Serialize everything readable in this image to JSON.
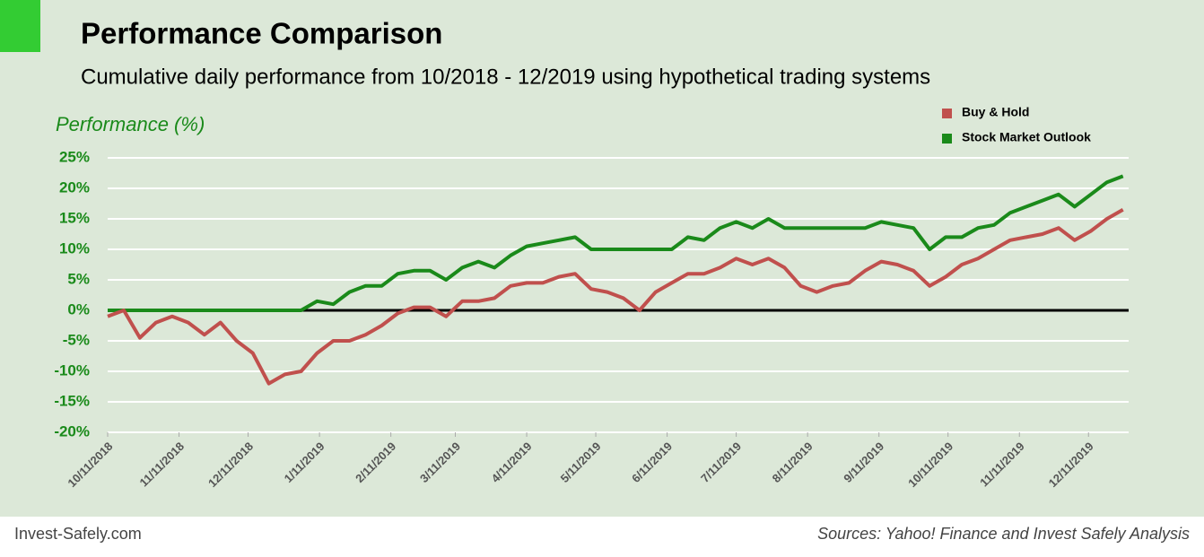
{
  "chart_data": {
    "type": "line",
    "title": "Performance Comparison",
    "subtitle": "Cumulative daily performance from 10/2018 - 12/2019 using hypothetical trading systems",
    "y_label": "Performance (%)",
    "x": [
      "10/11/2018",
      "10/18/2018",
      "10/25/2018",
      "11/1/2018",
      "11/8/2018",
      "11/15/2018",
      "11/22/2018",
      "11/29/2018",
      "12/6/2018",
      "12/13/2018",
      "12/20/2018",
      "12/27/2018",
      "1/3/2019",
      "1/10/2019",
      "1/17/2019",
      "1/24/2019",
      "1/31/2019",
      "2/7/2019",
      "2/14/2019",
      "2/21/2019",
      "2/28/2019",
      "3/7/2019",
      "3/14/2019",
      "3/21/2019",
      "3/28/2019",
      "4/4/2019",
      "4/11/2019",
      "4/18/2019",
      "4/25/2019",
      "5/2/2019",
      "5/9/2019",
      "5/16/2019",
      "5/23/2019",
      "5/30/2019",
      "6/6/2019",
      "6/13/2019",
      "6/20/2019",
      "6/27/2019",
      "7/4/2019",
      "7/11/2019",
      "7/18/2019",
      "7/25/2019",
      "8/1/2019",
      "8/8/2019",
      "8/15/2019",
      "8/22/2019",
      "8/29/2019",
      "9/5/2019",
      "9/12/2019",
      "9/19/2019",
      "9/26/2019",
      "10/3/2019",
      "10/10/2019",
      "10/17/2019",
      "10/24/2019",
      "10/31/2019",
      "11/7/2019",
      "11/14/2019",
      "11/21/2019",
      "11/28/2019",
      "12/5/2019",
      "12/12/2019",
      "12/19/2019",
      "12/26/2019"
    ],
    "series": [
      {
        "name": "Buy & Hold",
        "color": "#c0504d",
        "values": [
          -1,
          0,
          -4.5,
          -2,
          -1,
          -2,
          -4,
          -2,
          -5,
          -7,
          -12,
          -10.5,
          -10,
          -7,
          -5,
          -5,
          -4,
          -2.5,
          -0.5,
          0.5,
          0.5,
          -1,
          1.5,
          1.5,
          2,
          4,
          4.5,
          4.5,
          5.5,
          6,
          3.5,
          3,
          2,
          0,
          3,
          4.5,
          6,
          6,
          7,
          8.5,
          7.5,
          8.5,
          7,
          4,
          3,
          4,
          4.5,
          6.5,
          8,
          7.5,
          6.5,
          4,
          5.5,
          7.5,
          8.5,
          10,
          11.5,
          12,
          12.5,
          13.5,
          11.5,
          13,
          15,
          16.5
        ]
      },
      {
        "name": "Stock Market Outlook",
        "color": "#1a8a1a",
        "values": [
          0,
          0,
          0,
          0,
          0,
          0,
          0,
          0,
          0,
          0,
          0,
          0,
          0,
          1.5,
          1,
          3,
          4,
          4,
          6,
          6.5,
          6.5,
          5,
          7,
          8,
          7,
          9,
          10.5,
          11,
          11.5,
          12,
          10,
          10,
          10,
          10,
          10,
          10,
          12,
          11.5,
          13.5,
          14.5,
          13.5,
          15,
          13.5,
          13.5,
          13.5,
          13.5,
          13.5,
          13.5,
          14.5,
          14,
          13.5,
          10,
          12,
          12,
          13.5,
          14,
          16,
          17,
          18,
          19,
          17,
          19,
          21,
          22
        ]
      }
    ],
    "xlim": [
      "10/11/2018",
      "12/30/2019"
    ],
    "xticks": [
      "10/11/2018",
      "11/11/2018",
      "12/11/2018",
      "1/11/2019",
      "2/11/2019",
      "3/11/2019",
      "4/11/2019",
      "5/11/2019",
      "6/11/2019",
      "7/11/2019",
      "8/11/2019",
      "9/11/2019",
      "10/11/2019",
      "11/11/2019",
      "12/11/2019"
    ],
    "ylim": [
      -20,
      25
    ],
    "yticks": [
      {
        "value": -20,
        "label": "-20%"
      },
      {
        "value": -15,
        "label": "-15%"
      },
      {
        "value": -10,
        "label": "-10%"
      },
      {
        "value": -5,
        "label": "-5%"
      },
      {
        "value": 0,
        "label": "0%"
      },
      {
        "value": 5,
        "label": "5%"
      },
      {
        "value": 10,
        "label": "10%"
      },
      {
        "value": 15,
        "label": "15%"
      },
      {
        "value": 20,
        "label": "20%"
      },
      {
        "value": 25,
        "label": "25%"
      }
    ],
    "grid": true,
    "legend": "top-right"
  },
  "footer": {
    "left": "Invest-Safely.com",
    "right": "Sources: Yahoo! Finance and Invest Safely Analysis"
  }
}
